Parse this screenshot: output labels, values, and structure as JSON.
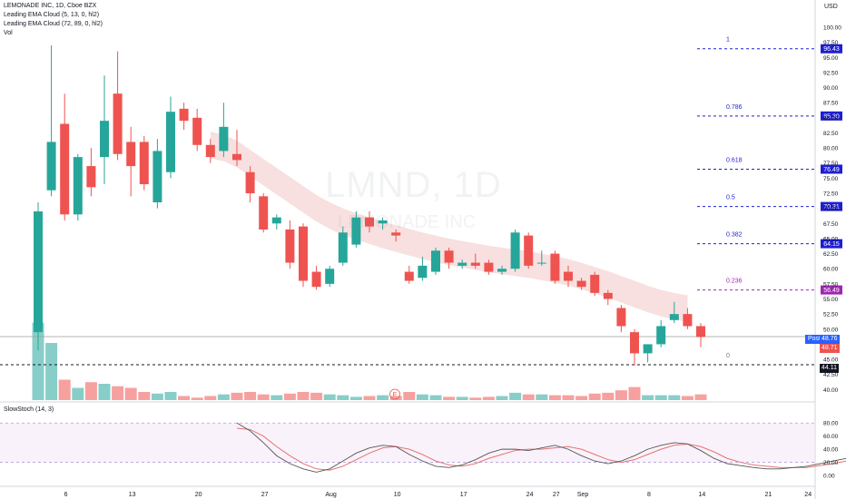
{
  "header": {
    "symbol_line": "LEMONADE INC, 1D, Cboe BZX",
    "indicator1": "Leading EMA Cloud (5, 13, 0, hl2)",
    "indicator2": "Leading EMA Cloud (72, 89, 0, hl2)",
    "volume_label": "Vol",
    "currency": "USD"
  },
  "watermark": {
    "ticker": "LMND, 1D",
    "name": "LEMONADE INC"
  },
  "stoch_label": "SlowStoch (14, 3)",
  "post_label": "Post",
  "e_marker": "E",
  "price_tags": {
    "post_price": "48.76",
    "last_price": "48.71",
    "support_price": "44.11"
  },
  "colors": {
    "up": "#26a69a",
    "down": "#ef5350",
    "fib_blue": "#1f1fd1",
    "fib_purple": "#9c27b0",
    "cloud": "#f3c6c6",
    "stoch_k": "#555555",
    "stoch_d": "#e57373"
  },
  "chart_data": {
    "type": "candlestick",
    "ylim": [
      39,
      101.5
    ],
    "price_ticks": [
      "100.00",
      "97.50",
      "95.00",
      "92.50",
      "90.00",
      "87.50",
      "85.00",
      "82.50",
      "80.00",
      "77.50",
      "75.00",
      "72.50",
      "70.00",
      "67.50",
      "65.00",
      "62.50",
      "60.00",
      "57.50",
      "55.00",
      "52.50",
      "50.00",
      "47.50",
      "45.00",
      "42.50",
      "40.00"
    ],
    "x_ticks": [
      {
        "label": "6",
        "i": 1
      },
      {
        "label": "13",
        "i": 6
      },
      {
        "label": "20",
        "i": 11
      },
      {
        "label": "27",
        "i": 16
      },
      {
        "label": "Aug",
        "i": 21
      },
      {
        "label": "10",
        "i": 26
      },
      {
        "label": "17",
        "i": 31
      },
      {
        "label": "24",
        "i": 36
      },
      {
        "label": "27",
        "i": 38
      },
      {
        "label": "Sep",
        "i": 40
      },
      {
        "label": "8",
        "i": 45
      },
      {
        "label": "14",
        "i": 49
      },
      {
        "label": "21",
        "i": 54
      },
      {
        "label": "24",
        "i": 57
      }
    ],
    "candles": [
      {
        "o": 49.5,
        "h": 71.0,
        "l": 46.5,
        "c": 69.5
      },
      {
        "o": 73.0,
        "h": 97.0,
        "l": 72.0,
        "c": 81.0
      },
      {
        "o": 84.0,
        "h": 89.0,
        "l": 68.0,
        "c": 69.0
      },
      {
        "o": 69.0,
        "h": 79.0,
        "l": 68.0,
        "c": 78.5
      },
      {
        "o": 77.0,
        "h": 80.0,
        "l": 72.0,
        "c": 73.5
      },
      {
        "o": 78.5,
        "h": 92.0,
        "l": 74.0,
        "c": 84.5
      },
      {
        "o": 89.0,
        "h": 96.0,
        "l": 78.0,
        "c": 79.0
      },
      {
        "o": 81.0,
        "h": 83.5,
        "l": 72.0,
        "c": 77.0
      },
      {
        "o": 81.0,
        "h": 82.0,
        "l": 73.0,
        "c": 74.0
      },
      {
        "o": 71.0,
        "h": 81.5,
        "l": 70.0,
        "c": 79.5
      },
      {
        "o": 76.0,
        "h": 88.5,
        "l": 75.0,
        "c": 86.0
      },
      {
        "o": 86.5,
        "h": 87.5,
        "l": 83.0,
        "c": 84.5
      },
      {
        "o": 85.0,
        "h": 86.5,
        "l": 79.5,
        "c": 80.5
      },
      {
        "o": 80.5,
        "h": 81.5,
        "l": 77.5,
        "c": 78.5
      },
      {
        "o": 79.5,
        "h": 87.5,
        "l": 78.5,
        "c": 83.5
      },
      {
        "o": 79.0,
        "h": 83.0,
        "l": 77.0,
        "c": 78.0
      },
      {
        "o": 76.0,
        "h": 77.0,
        "l": 71.0,
        "c": 72.5
      },
      {
        "o": 72.0,
        "h": 72.5,
        "l": 66.0,
        "c": 66.5
      },
      {
        "o": 67.5,
        "h": 69.0,
        "l": 66.5,
        "c": 68.5
      },
      {
        "o": 66.5,
        "h": 68.0,
        "l": 60.0,
        "c": 61.0
      },
      {
        "o": 67.0,
        "h": 67.5,
        "l": 57.0,
        "c": 58.0
      },
      {
        "o": 59.5,
        "h": 60.5,
        "l": 56.5,
        "c": 57.0
      },
      {
        "o": 57.5,
        "h": 60.5,
        "l": 57.0,
        "c": 60.0
      },
      {
        "o": 61.0,
        "h": 67.0,
        "l": 60.5,
        "c": 66.0
      },
      {
        "o": 64.0,
        "h": 69.5,
        "l": 63.5,
        "c": 68.5
      },
      {
        "o": 68.5,
        "h": 69.5,
        "l": 66.0,
        "c": 67.0
      },
      {
        "o": 67.5,
        "h": 68.5,
        "l": 66.5,
        "c": 68.0
      },
      {
        "o": 66.0,
        "h": 66.5,
        "l": 64.5,
        "c": 65.5
      },
      {
        "o": 59.5,
        "h": 60.5,
        "l": 57.5,
        "c": 58.0
      },
      {
        "o": 58.5,
        "h": 62.0,
        "l": 58.0,
        "c": 60.5
      },
      {
        "o": 59.5,
        "h": 63.5,
        "l": 59.0,
        "c": 63.0
      },
      {
        "o": 63.0,
        "h": 63.5,
        "l": 60.0,
        "c": 61.0
      },
      {
        "o": 60.5,
        "h": 61.5,
        "l": 60.0,
        "c": 61.0
      },
      {
        "o": 61.0,
        "h": 62.5,
        "l": 60.0,
        "c": 60.5
      },
      {
        "o": 61.0,
        "h": 61.5,
        "l": 59.0,
        "c": 59.5
      },
      {
        "o": 59.5,
        "h": 60.5,
        "l": 59.0,
        "c": 60.0
      },
      {
        "o": 60.0,
        "h": 66.5,
        "l": 59.5,
        "c": 66.0
      },
      {
        "o": 65.5,
        "h": 66.0,
        "l": 60.0,
        "c": 60.5
      },
      {
        "o": 61.0,
        "h": 63.0,
        "l": 60.5,
        "c": 61.0
      },
      {
        "o": 62.5,
        "h": 63.0,
        "l": 57.5,
        "c": 58.0
      },
      {
        "o": 59.5,
        "h": 60.5,
        "l": 57.0,
        "c": 58.0
      },
      {
        "o": 58.0,
        "h": 58.5,
        "l": 56.5,
        "c": 57.0
      },
      {
        "o": 59.0,
        "h": 59.5,
        "l": 55.5,
        "c": 56.0
      },
      {
        "o": 56.0,
        "h": 56.5,
        "l": 54.0,
        "c": 55.0
      },
      {
        "o": 53.5,
        "h": 54.0,
        "l": 49.5,
        "c": 50.5
      },
      {
        "o": 49.5,
        "h": 50.0,
        "l": 44.0,
        "c": 46.0
      },
      {
        "o": 46.0,
        "h": 47.5,
        "l": 44.5,
        "c": 47.5
      },
      {
        "o": 47.5,
        "h": 51.5,
        "l": 47.0,
        "c": 50.5
      },
      {
        "o": 51.5,
        "h": 54.5,
        "l": 51.0,
        "c": 52.5
      },
      {
        "o": 52.5,
        "h": 53.5,
        "l": 50.0,
        "c": 50.5
      },
      {
        "o": 50.5,
        "h": 51.0,
        "l": 47.0,
        "c": 48.7
      }
    ],
    "volume": [
      9.5,
      7.0,
      2.5,
      1.5,
      2.2,
      2.0,
      1.7,
      1.5,
      1.0,
      0.8,
      1.0,
      0.5,
      0.3,
      0.5,
      0.7,
      0.9,
      1.0,
      0.7,
      0.6,
      0.8,
      1.0,
      0.9,
      0.7,
      0.6,
      0.4,
      0.5,
      0.6,
      0.5,
      1.0,
      0.7,
      0.6,
      0.4,
      0.4,
      0.3,
      0.4,
      0.5,
      0.9,
      0.7,
      0.7,
      0.6,
      0.6,
      0.5,
      0.8,
      0.9,
      1.2,
      1.6,
      0.6,
      0.6,
      0.6,
      0.5,
      0.7
    ],
    "volume_max": 10,
    "cloud_ema": [
      null,
      null,
      null,
      null,
      null,
      null,
      null,
      null,
      null,
      null,
      null,
      null,
      null,
      80.5,
      80.0,
      79.0,
      77.5,
      76.0,
      74.5,
      73.0,
      71.5,
      70.0,
      68.8,
      67.8,
      67.0,
      66.3,
      65.6,
      65.0,
      64.4,
      63.8,
      63.3,
      62.8,
      62.4,
      62.0,
      61.6,
      61.3,
      61.0,
      60.7,
      60.3,
      59.9,
      59.4,
      58.8,
      58.1,
      57.4,
      56.6,
      55.8,
      55.0,
      54.3,
      53.8,
      53.4,
      null
    ],
    "cloud_width": 2.2,
    "fib_levels": [
      {
        "ratio": "1",
        "price": 96.43,
        "price_label": "96.43"
      },
      {
        "ratio": "0.786",
        "price": 85.3,
        "price_label": "85.30"
      },
      {
        "ratio": "0.618",
        "price": 76.49,
        "price_label": "76.49"
      },
      {
        "ratio": "0.5",
        "price": 70.31,
        "price_label": "70.31"
      },
      {
        "ratio": "0.382",
        "price": 64.15,
        "price_label": "64.15"
      },
      {
        "ratio": "0.236",
        "price": 56.49,
        "price_label": "56.49"
      },
      {
        "ratio": "0",
        "price": 44.11,
        "price_label": "44.11"
      }
    ],
    "stoch_ticks": [
      "80.00",
      "60.00",
      "40.00",
      "20.00",
      "0.00"
    ],
    "stoch_band": [
      20,
      80
    ],
    "stoch_k": [
      null,
      null,
      null,
      null,
      null,
      null,
      null,
      null,
      null,
      null,
      null,
      null,
      null,
      null,
      null,
      null,
      80,
      68,
      50,
      30,
      18,
      10,
      5,
      10,
      22,
      34,
      42,
      46,
      44,
      32,
      22,
      14,
      12,
      16,
      24,
      34,
      40,
      40,
      38,
      42,
      46,
      40,
      30,
      22,
      18,
      22,
      30,
      40,
      46,
      50,
      48,
      44,
      38,
      30,
      22,
      16,
      10,
      8,
      10,
      14,
      18,
      20,
      22,
      26,
      30,
      28
    ],
    "stoch_k_real": [
      80,
      68,
      50,
      30,
      18,
      10,
      5,
      10,
      22,
      34,
      42,
      46,
      44,
      32,
      22,
      14,
      12,
      16,
      24,
      34,
      40,
      40,
      38,
      42,
      46,
      40,
      30,
      22,
      18,
      22,
      30,
      40,
      46,
      50,
      48,
      38,
      26,
      18,
      15,
      12,
      10,
      10,
      12,
      14,
      18,
      22,
      26,
      30,
      28
    ],
    "stoch_d_real": [
      72,
      70,
      60,
      44,
      30,
      18,
      10,
      8,
      14,
      24,
      34,
      42,
      44,
      40,
      32,
      22,
      16,
      14,
      18,
      26,
      32,
      38,
      40,
      40,
      42,
      44,
      40,
      32,
      24,
      20,
      24,
      32,
      40,
      46,
      48,
      44,
      36,
      26,
      20,
      16,
      14,
      12,
      12,
      12,
      15,
      18,
      22,
      26,
      28
    ]
  }
}
